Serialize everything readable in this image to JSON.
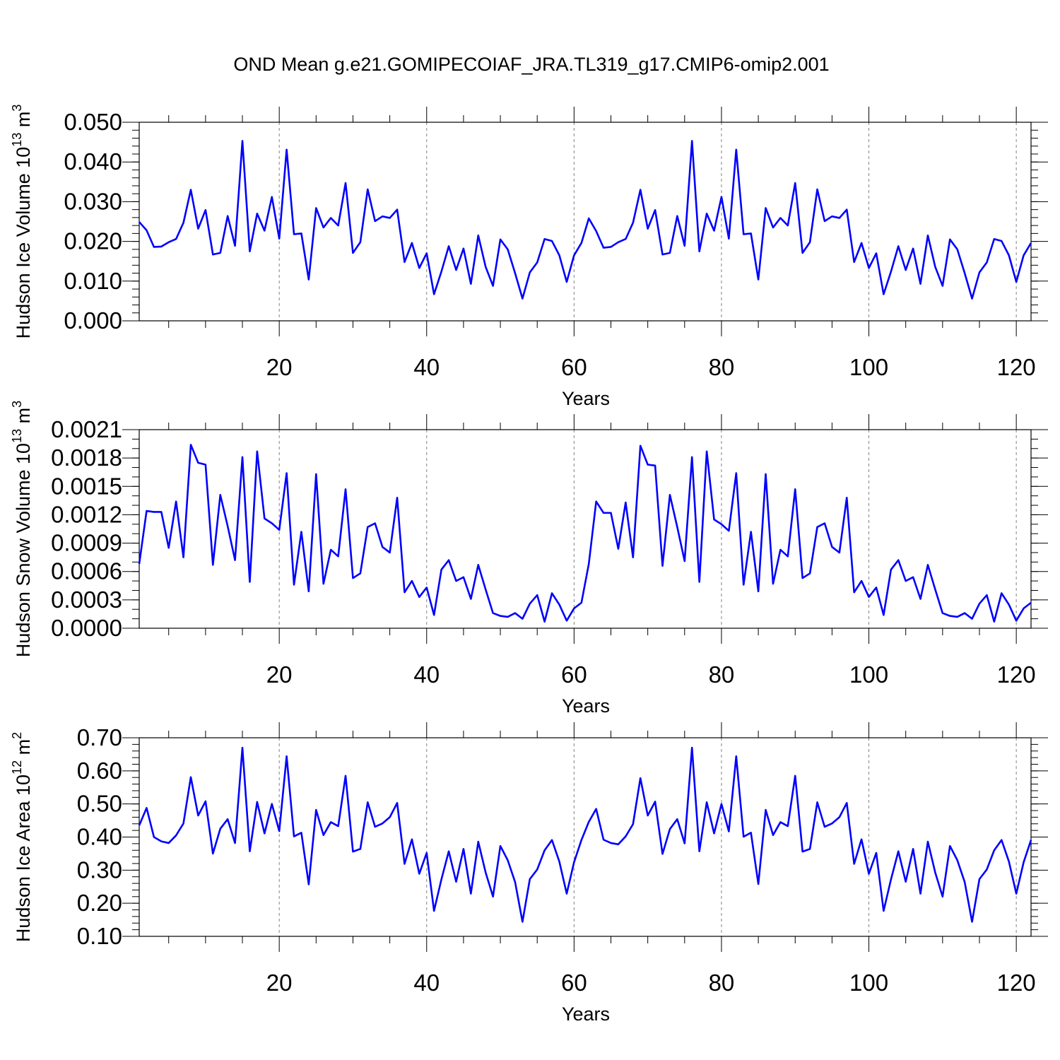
{
  "title": "OND Mean g.e21.GOMIPECOIAF_JRA.TL319_g17.CMIP6-omip2.001",
  "colors": {
    "line": "#0000ff",
    "grid": "#808080"
  },
  "chart_data": [
    {
      "type": "line",
      "title": "",
      "xlabel": "Years",
      "ylabel": "Hudson Ice Volume 10^13 m^3",
      "ylabel_parts": [
        "Hudson Ice Volume 10",
        "13",
        " m",
        "3"
      ],
      "xlim": [
        1,
        122
      ],
      "ylim": [
        0.0,
        0.05
      ],
      "xticks": [
        20,
        40,
        60,
        80,
        100,
        120
      ],
      "yticks": [
        0.0,
        0.01,
        0.02,
        0.03,
        0.04,
        0.05
      ],
      "ytick_labels": [
        "0.000",
        "0.010",
        "0.020",
        "0.030",
        "0.040",
        "0.050"
      ],
      "yminor_step": 0.002,
      "grid": "x-dashed",
      "series": [
        {
          "name": "Hudson Ice Volume",
          "values": [
            0.0249,
            0.0228,
            0.0186,
            0.0187,
            0.0198,
            0.0206,
            0.0247,
            0.033,
            0.0232,
            0.0279,
            0.0167,
            0.0171,
            0.0264,
            0.0189,
            0.0453,
            0.0175,
            0.027,
            0.0227,
            0.0312,
            0.0207,
            0.0431,
            0.0218,
            0.022,
            0.0104,
            0.0284,
            0.0235,
            0.0259,
            0.024,
            0.0347,
            0.0171,
            0.0198,
            0.0331,
            0.0251,
            0.0263,
            0.0259,
            0.028,
            0.0148,
            0.0196,
            0.0133,
            0.017,
            0.0067,
            0.0124,
            0.0188,
            0.0128,
            0.0182,
            0.0093,
            0.0215,
            0.0136,
            0.0088,
            0.0205,
            0.018,
            0.012,
            0.0056,
            0.0122,
            0.0147,
            0.0206,
            0.0201,
            0.0165,
            0.0098,
            0.0165,
            0.0196,
            0.0258,
            0.0226,
            0.0184,
            0.0186,
            0.0198,
            0.0206,
            0.0247,
            0.033,
            0.0232,
            0.0279,
            0.0167,
            0.0171,
            0.0264,
            0.0189,
            0.0453,
            0.0175,
            0.027,
            0.0227,
            0.0312,
            0.0207,
            0.0431,
            0.0218,
            0.022,
            0.0104,
            0.0284,
            0.0235,
            0.0259,
            0.024,
            0.0347,
            0.0171,
            0.0198,
            0.0331,
            0.0251,
            0.0263,
            0.0259,
            0.028,
            0.0148,
            0.0196,
            0.0133,
            0.017,
            0.0067,
            0.0124,
            0.0188,
            0.0128,
            0.0182,
            0.0093,
            0.0215,
            0.0136,
            0.0088,
            0.0205,
            0.018,
            0.012,
            0.0056,
            0.0122,
            0.0147,
            0.0206,
            0.0201,
            0.0165,
            0.0098,
            0.0165,
            0.0196
          ]
        }
      ]
    },
    {
      "type": "line",
      "title": "",
      "xlabel": "Years",
      "ylabel": "Hudson Snow Volume 10^13 m^3",
      "ylabel_parts": [
        "Hudson Snow Volume 10",
        "13",
        " m",
        "3"
      ],
      "xlim": [
        1,
        122
      ],
      "ylim": [
        0.0,
        0.0021
      ],
      "xticks": [
        20,
        40,
        60,
        80,
        100,
        120
      ],
      "yticks": [
        0.0,
        0.0003,
        0.0006,
        0.0009,
        0.0012,
        0.0015,
        0.0018,
        0.0021
      ],
      "ytick_labels": [
        "0.0000",
        "0.0003",
        "0.0006",
        "0.0009",
        "0.0012",
        "0.0015",
        "0.0018",
        "0.0021"
      ],
      "yminor_step": 0.0001,
      "grid": "x-dashed",
      "series": [
        {
          "name": "Hudson Snow Volume",
          "values": [
            0.00068,
            0.00124,
            0.00123,
            0.00123,
            0.00085,
            0.00134,
            0.00075,
            0.00194,
            0.00175,
            0.00173,
            0.00067,
            0.00141,
            0.00108,
            0.00072,
            0.00181,
            0.00049,
            0.00187,
            0.00116,
            0.00111,
            0.00104,
            0.00164,
            0.00046,
            0.00102,
            0.00039,
            0.00163,
            0.00047,
            0.00083,
            0.00076,
            0.00147,
            0.00053,
            0.00058,
            0.00107,
            0.00111,
            0.00086,
            0.0008,
            0.00138,
            0.00038,
            0.0005,
            0.00033,
            0.00043,
            0.00014,
            0.00062,
            0.00072,
            0.0005,
            0.00054,
            0.00031,
            0.00067,
            0.00041,
            0.00016,
            0.00013,
            0.00012,
            0.00016,
            0.0001,
            0.00026,
            0.00035,
            7e-05,
            0.00037,
            0.00025,
            8e-05,
            0.00021,
            0.00027,
            0.00068,
            0.00134,
            0.00122,
            0.00122,
            0.00084,
            0.00133,
            0.00075,
            0.00193,
            0.00173,
            0.00172,
            0.00066,
            0.00141,
            0.00107,
            0.00071,
            0.00181,
            0.00049,
            0.00187,
            0.00115,
            0.0011,
            0.00103,
            0.00164,
            0.00046,
            0.00102,
            0.00039,
            0.00163,
            0.00047,
            0.00083,
            0.00076,
            0.00147,
            0.00053,
            0.00058,
            0.00107,
            0.00111,
            0.00086,
            0.0008,
            0.00138,
            0.00038,
            0.0005,
            0.00033,
            0.00043,
            0.00014,
            0.00062,
            0.00072,
            0.0005,
            0.00054,
            0.00031,
            0.00067,
            0.00041,
            0.00016,
            0.00013,
            0.00012,
            0.00016,
            0.0001,
            0.00026,
            0.00035,
            7e-05,
            0.00037,
            0.00025,
            8e-05,
            0.00021,
            0.00027
          ]
        }
      ]
    },
    {
      "type": "line",
      "title": "",
      "xlabel": "Years",
      "ylabel": "Hudson Ice Area 10^12 m^2",
      "ylabel_parts": [
        "Hudson Ice Area 10",
        "12",
        " m",
        "2"
      ],
      "xlim": [
        1,
        122
      ],
      "ylim": [
        0.1,
        0.7
      ],
      "xticks": [
        20,
        40,
        60,
        80,
        100,
        120
      ],
      "yticks": [
        0.1,
        0.2,
        0.3,
        0.4,
        0.5,
        0.6,
        0.7
      ],
      "ytick_labels": [
        "0.10",
        "0.20",
        "0.30",
        "0.40",
        "0.50",
        "0.60",
        "0.70"
      ],
      "yminor_step": 0.02,
      "grid": "x-dashed",
      "series": [
        {
          "name": "Hudson Ice Area",
          "values": [
            0.435,
            0.488,
            0.4,
            0.387,
            0.382,
            0.405,
            0.441,
            0.581,
            0.465,
            0.508,
            0.35,
            0.425,
            0.454,
            0.382,
            0.67,
            0.357,
            0.506,
            0.411,
            0.5,
            0.418,
            0.644,
            0.402,
            0.413,
            0.257,
            0.482,
            0.406,
            0.445,
            0.433,
            0.585,
            0.356,
            0.364,
            0.505,
            0.431,
            0.441,
            0.46,
            0.503,
            0.319,
            0.393,
            0.289,
            0.352,
            0.177,
            0.272,
            0.357,
            0.265,
            0.364,
            0.229,
            0.386,
            0.293,
            0.22,
            0.373,
            0.33,
            0.264,
            0.144,
            0.273,
            0.302,
            0.36,
            0.391,
            0.326,
            0.229,
            0.324,
            0.391,
            0.446,
            0.485,
            0.392,
            0.382,
            0.378,
            0.402,
            0.439,
            0.578,
            0.465,
            0.507,
            0.349,
            0.424,
            0.454,
            0.381,
            0.67,
            0.357,
            0.505,
            0.411,
            0.5,
            0.417,
            0.644,
            0.401,
            0.413,
            0.258,
            0.482,
            0.406,
            0.445,
            0.433,
            0.585,
            0.356,
            0.364,
            0.505,
            0.431,
            0.441,
            0.46,
            0.503,
            0.319,
            0.393,
            0.289,
            0.352,
            0.177,
            0.272,
            0.357,
            0.265,
            0.364,
            0.229,
            0.386,
            0.293,
            0.22,
            0.373,
            0.33,
            0.264,
            0.144,
            0.273,
            0.302,
            0.36,
            0.391,
            0.326,
            0.229,
            0.324,
            0.391
          ]
        }
      ]
    }
  ]
}
